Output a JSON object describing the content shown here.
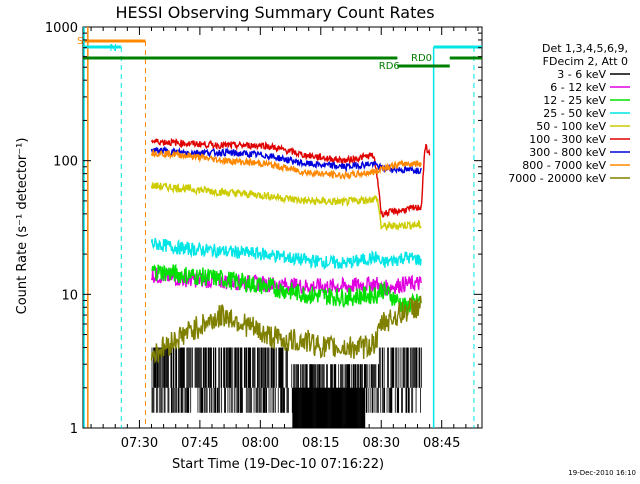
{
  "chart_data": {
    "type": "line",
    "title": "HESSI Observing Summary Count Rates",
    "xlabel": "Start Time (19-Dec-10 07:16:22)",
    "ylabel": "Count Rate (s⁻¹ detector⁻¹)",
    "yscale": "log",
    "xlim_minutes_after_0716": [
      0,
      99
    ],
    "ylim": [
      1,
      1000
    ],
    "x_ticks": [
      {
        "t": 14,
        "label": "07:30"
      },
      {
        "t": 29,
        "label": "07:45"
      },
      {
        "t": 44,
        "label": "08:00"
      },
      {
        "t": 59,
        "label": "08:15"
      },
      {
        "t": 74,
        "label": "08:30"
      },
      {
        "t": 89,
        "label": "08:45"
      }
    ],
    "y_ticks": [
      {
        "v": 1,
        "label": "1"
      },
      {
        "v": 10,
        "label": "10"
      },
      {
        "v": 100,
        "label": "100"
      },
      {
        "v": 1000,
        "label": "1000"
      }
    ],
    "legend_header": [
      "Det 1,3,4,5,6,9,",
      "FDecim 2, Att 0"
    ],
    "series": [
      {
        "name": "3 - 6 keV",
        "color": "#000000",
        "x": [
          17,
          25,
          35,
          45,
          55,
          65,
          73,
          74,
          80,
          84
        ],
        "y": [
          2.5,
          2.5,
          2.5,
          2.5,
          2.0,
          2.0,
          2.0,
          2.5,
          2.5,
          2.5
        ]
      },
      {
        "name": "6 - 12 keV",
        "color": "#e000e0",
        "x": [
          17,
          25,
          35,
          45,
          55,
          65,
          73,
          74,
          80,
          84
        ],
        "y": [
          14,
          13,
          12.5,
          12,
          11.5,
          11.5,
          12,
          11,
          12,
          12
        ]
      },
      {
        "name": "12 - 25 keV",
        "color": "#00e000",
        "x": [
          17,
          25,
          35,
          45,
          55,
          65,
          73,
          74,
          80,
          84
        ],
        "y": [
          15,
          14,
          13,
          11.5,
          10,
          9.5,
          10,
          11,
          8,
          9
        ]
      },
      {
        "name": "25 - 50 keV",
        "color": "#00e5e5",
        "x": [
          17,
          25,
          35,
          45,
          55,
          65,
          73,
          74,
          80,
          84
        ],
        "y": [
          24,
          22,
          21,
          20,
          18,
          17,
          19,
          17,
          19,
          18
        ]
      },
      {
        "name": "50 - 100 keV",
        "color": "#cccc00",
        "x": [
          17,
          25,
          35,
          45,
          55,
          65,
          73,
          74,
          80,
          84
        ],
        "y": [
          65,
          62,
          58,
          55,
          50,
          49,
          52,
          32,
          33,
          33
        ]
      },
      {
        "name": "100 - 300 keV",
        "color": "#e00000",
        "x": [
          17,
          25,
          35,
          45,
          55,
          65,
          72,
          74,
          78,
          84,
          85,
          86
        ],
        "y": [
          140,
          135,
          130,
          130,
          110,
          100,
          110,
          40,
          42,
          45,
          130,
          110
        ]
      },
      {
        "name": "300 - 800 keV",
        "color": "#0000dd",
        "x": [
          17,
          25,
          35,
          45,
          55,
          65,
          72,
          74,
          80,
          84
        ],
        "y": [
          120,
          115,
          115,
          110,
          95,
          90,
          95,
          88,
          85,
          85
        ]
      },
      {
        "name": "800 - 7000 keV",
        "color": "#ff8800",
        "x": [
          17,
          25,
          35,
          45,
          55,
          65,
          73,
          74,
          80,
          84
        ],
        "y": [
          115,
          110,
          100,
          95,
          82,
          77,
          83,
          88,
          95,
          95
        ]
      },
      {
        "name": "7000 - 20000 keV",
        "color": "#808000",
        "x": [
          17,
          20,
          25,
          30,
          35,
          40,
          45,
          50,
          55,
          60,
          65,
          70,
          73,
          74,
          78,
          82,
          84
        ],
        "y": [
          3.5,
          4,
          5,
          6,
          7,
          6,
          5,
          4.5,
          4.5,
          4,
          4,
          4,
          4.5,
          6,
          7,
          8,
          8
        ]
      }
    ],
    "flags": [
      {
        "label": "S",
        "color": "#ff8800"
      },
      {
        "label": "N",
        "color": "#00e5e5"
      },
      {
        "label": "RD0",
        "color": "#008000"
      },
      {
        "label": "RD6",
        "color": "#008000"
      }
    ],
    "timestamp": "19-Dec-2010 16:10"
  }
}
